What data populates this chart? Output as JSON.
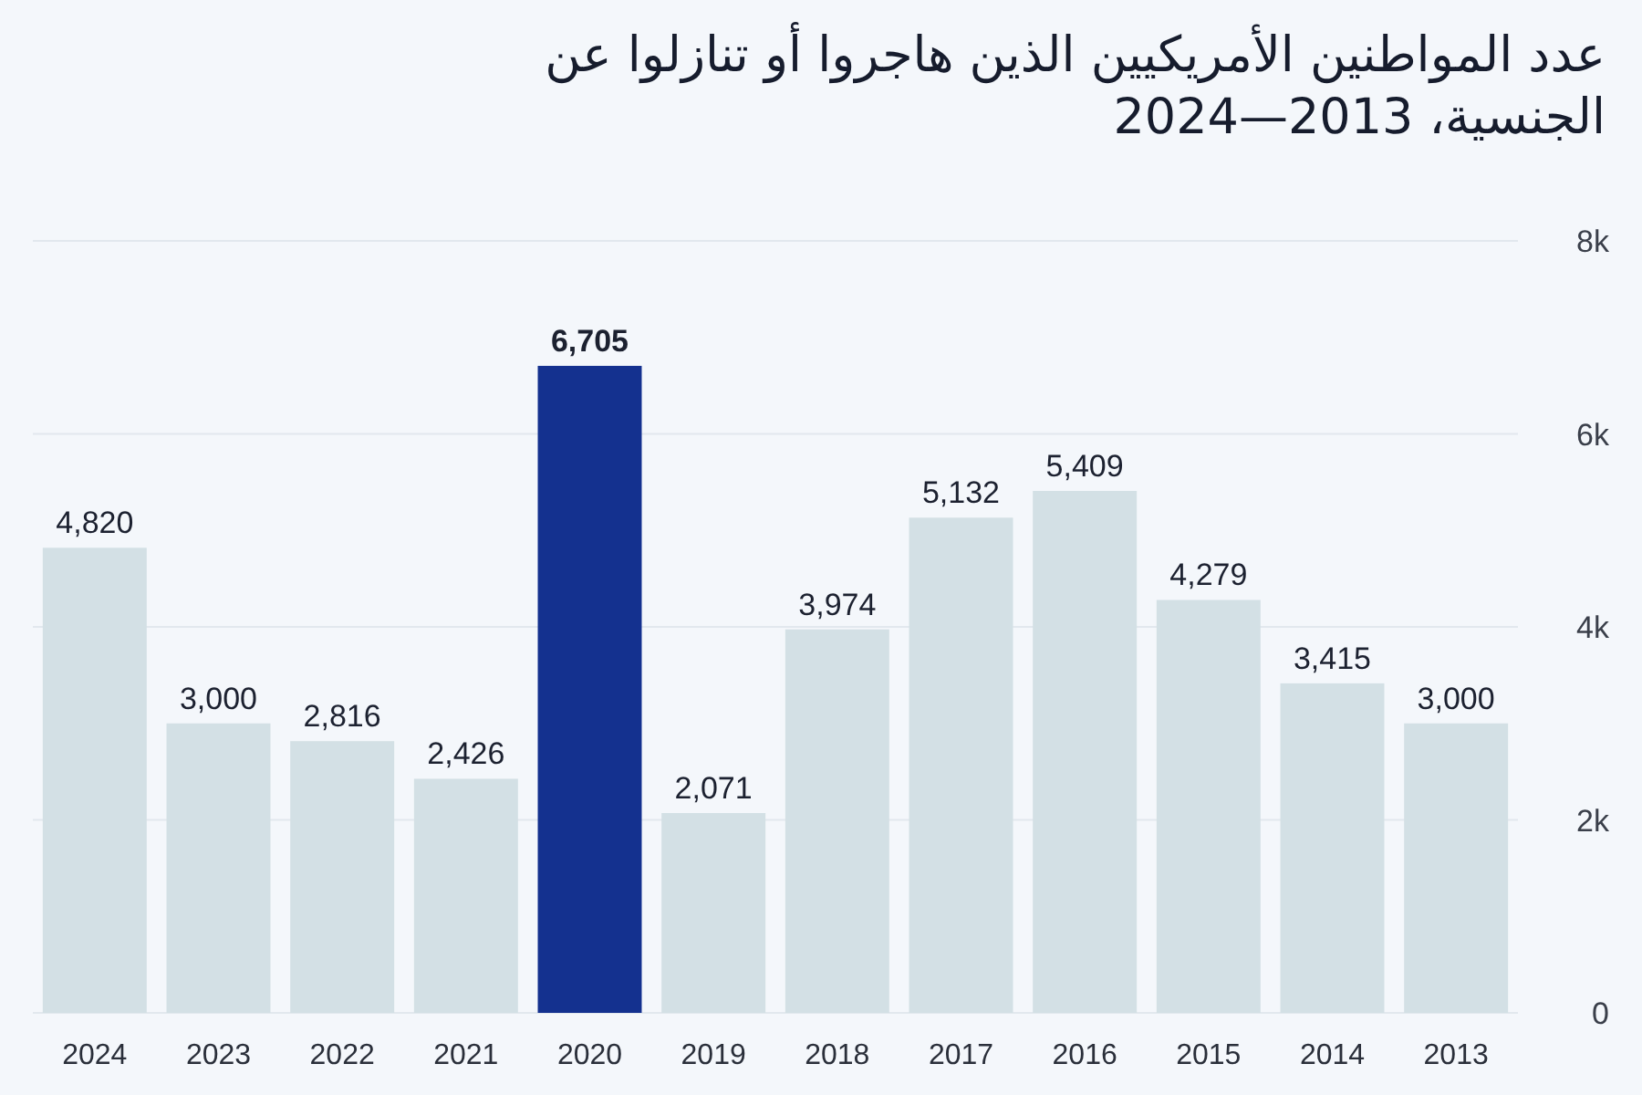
{
  "chart_data": {
    "type": "bar",
    "title": "عدد المواطنين الأمريكيين الذين هاجروا أو تنازلوا عن الجنسية، 2013—2024",
    "categories": [
      "2024",
      "2023",
      "2022",
      "2021",
      "2020",
      "2019",
      "2018",
      "2017",
      "2016",
      "2015",
      "2014",
      "2013"
    ],
    "values": [
      4820,
      3000,
      2816,
      2426,
      6705,
      2071,
      3974,
      5132,
      5409,
      4279,
      3415,
      3000
    ],
    "colors": [
      "#d3e0e5",
      "#d3e0e5",
      "#d3e0e5",
      "#d3e0e5",
      "#14318f",
      "#d3e0e5",
      "#d3e0e5",
      "#d3e0e5",
      "#d3e0e5",
      "#d3e0e5",
      "#d3e0e5",
      "#d3e0e5"
    ],
    "value_labels": [
      "4,820",
      "3,000",
      "2,816",
      "2,426",
      "6,705",
      "2,071",
      "3,974",
      "5,132",
      "5,409",
      "4,279",
      "3,415",
      "3,000"
    ],
    "ylim": [
      0,
      8000
    ],
    "yticks": [
      0,
      {
        "value": 2000,
        "label": "2k"
      },
      {
        "value": 4000,
        "label": "4k"
      },
      {
        "value": 6000,
        "label": "6k"
      },
      {
        "value": 8000,
        "label": "8k"
      }
    ],
    "grid": "y"
  }
}
